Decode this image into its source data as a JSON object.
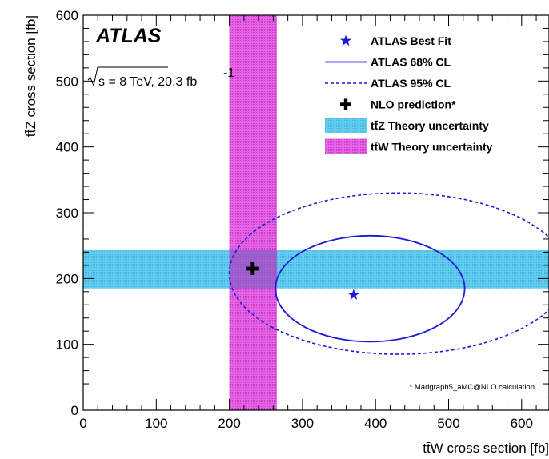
{
  "chart_data": {
    "type": "contour",
    "xlabel": "tt̄W cross section [fb]",
    "ylabel": "tt̄Z cross section [fb]",
    "xlim": [
      0,
      640
    ],
    "ylim": [
      0,
      600
    ],
    "x_ticks": [
      "0",
      "100",
      "200",
      "300",
      "400",
      "500",
      "600"
    ],
    "y_ticks": [
      "0",
      "100",
      "200",
      "300",
      "400",
      "500",
      "600"
    ],
    "experiment_label": "ATLAS",
    "energy_label": {
      "sqrt": "√",
      "text": "s = 8 TeV,  20.3 fb",
      "superscript": "-1"
    },
    "footnote": "* Madgraph5_aMC@NLO calculation",
    "best_fit": {
      "ttW": 370,
      "ttZ": 175
    },
    "nlo_prediction": {
      "ttW": 232,
      "ttZ": 215
    },
    "ttZ_theory_band": {
      "low": 185,
      "high": 243
    },
    "ttW_theory_band": {
      "low": 200,
      "high": 265
    },
    "cl68": {
      "center": [
        385,
        185
      ],
      "x_extent": [
        263,
        522
      ],
      "y_extent": [
        104,
        265
      ]
    },
    "cl95": {
      "center": [
        408,
        217
      ],
      "x_extent": [
        200,
        662
      ],
      "y_extent": [
        85,
        330
      ]
    },
    "legend": {
      "placement": "top-right",
      "entries": [
        {
          "label": "ATLAS Best Fit",
          "symbol": "star"
        },
        {
          "label": "ATLAS 68% CL",
          "symbol": "solid-line"
        },
        {
          "label": "ATLAS 95% CL",
          "symbol": "dashed-line"
        },
        {
          "label": "NLO prediction*",
          "symbol": "cross"
        },
        {
          "label": "tt̄Z Theory uncertainty",
          "symbol": "cyan-box"
        },
        {
          "label": "tt̄W Theory uncertainty",
          "symbol": "magenta-box"
        }
      ]
    },
    "colors": {
      "contour": "#1a1ad6",
      "ttZ_band": "#55c8ec",
      "ttW_band": "#dd44dd",
      "marker": "#000000"
    }
  }
}
